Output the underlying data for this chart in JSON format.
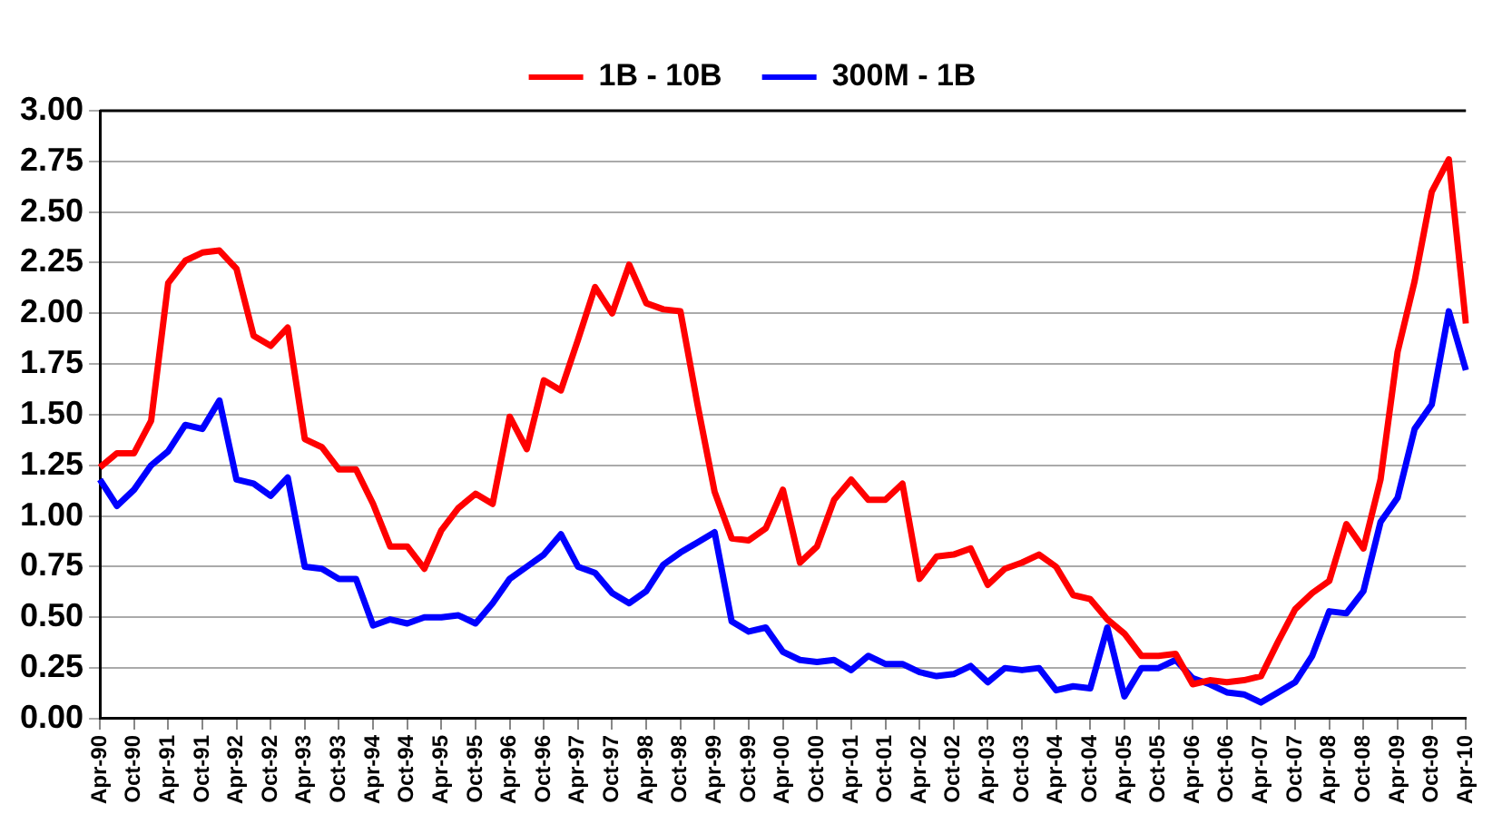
{
  "chart_data": {
    "type": "line",
    "categories": [
      "Apr-90",
      null,
      "Oct-90",
      null,
      "Apr-91",
      null,
      "Oct-91",
      null,
      "Apr-92",
      null,
      "Oct-92",
      null,
      "Apr-93",
      null,
      "Oct-93",
      null,
      "Apr-94",
      null,
      "Oct-94",
      null,
      "Apr-95",
      null,
      "Oct-95",
      null,
      "Apr-96",
      null,
      "Oct-96",
      null,
      "Apr-97",
      null,
      "Oct-97",
      null,
      "Apr-98",
      null,
      "Oct-98",
      null,
      "Apr-99",
      null,
      "Oct-99",
      null,
      "Apr-00",
      null,
      "Oct-00",
      null,
      "Apr-01",
      null,
      "Oct-01",
      null,
      "Apr-02",
      null,
      "Oct-02",
      null,
      "Apr-03",
      null,
      "Oct-03",
      null,
      "Apr-04",
      null,
      "Oct-04",
      null,
      "Apr-05",
      null,
      "Oct-05",
      null,
      "Apr-06",
      null,
      "Oct-06",
      null,
      "Apr-07",
      null,
      "Oct-07",
      null,
      "Apr-08",
      null,
      "Oct-08",
      null,
      "Apr-09",
      null,
      "Oct-09",
      null,
      "Apr-10"
    ],
    "series": [
      {
        "name": "1B - 10B",
        "color": "#ff0000",
        "values": [
          1.24,
          1.31,
          1.31,
          1.47,
          2.15,
          2.26,
          2.3,
          2.31,
          2.22,
          1.89,
          1.84,
          1.93,
          1.38,
          1.34,
          1.23,
          1.23,
          1.06,
          0.85,
          0.85,
          0.74,
          0.93,
          1.04,
          1.11,
          1.06,
          1.49,
          1.33,
          1.67,
          1.62,
          1.87,
          2.13,
          2.0,
          2.24,
          2.05,
          2.02,
          2.01,
          1.55,
          1.12,
          0.89,
          0.88,
          0.94,
          1.13,
          0.77,
          0.85,
          1.08,
          1.18,
          1.08,
          1.08,
          1.16,
          0.69,
          0.8,
          0.81,
          0.84,
          0.66,
          0.74,
          0.77,
          0.81,
          0.75,
          0.61,
          0.59,
          0.49,
          0.42,
          0.31,
          0.31,
          0.32,
          0.17,
          0.19,
          0.18,
          0.19,
          0.21,
          0.38,
          0.54,
          0.62,
          0.68,
          0.96,
          0.84,
          1.18,
          1.81,
          2.16,
          2.6,
          2.76,
          1.95
        ]
      },
      {
        "name": "300M - 1B",
        "color": "#0000ff",
        "values": [
          1.18,
          1.05,
          1.13,
          1.25,
          1.32,
          1.45,
          1.43,
          1.57,
          1.18,
          1.16,
          1.1,
          1.19,
          0.75,
          0.74,
          0.69,
          0.69,
          0.46,
          0.49,
          0.47,
          0.5,
          0.5,
          0.51,
          0.47,
          0.57,
          0.69,
          0.75,
          0.81,
          0.91,
          0.75,
          0.72,
          0.62,
          0.57,
          0.63,
          0.76,
          0.82,
          0.87,
          0.92,
          0.48,
          0.43,
          0.45,
          0.33,
          0.29,
          0.28,
          0.29,
          0.24,
          0.31,
          0.27,
          0.27,
          0.23,
          0.21,
          0.22,
          0.26,
          0.18,
          0.25,
          0.24,
          0.25,
          0.14,
          0.16,
          0.15,
          0.45,
          0.11,
          0.25,
          0.25,
          0.29,
          0.2,
          0.17,
          0.13,
          0.12,
          0.08,
          0.13,
          0.18,
          0.31,
          0.53,
          0.52,
          0.63,
          0.97,
          1.09,
          1.43,
          1.55,
          2.01,
          1.72
        ]
      }
    ],
    "ylim": [
      0,
      3
    ],
    "yticks": [
      {
        "value": 0,
        "label": "0.00"
      },
      {
        "value": 0.25,
        "label": "0.25"
      },
      {
        "value": 0.5,
        "label": "0.50"
      },
      {
        "value": 0.75,
        "label": "0.75"
      },
      {
        "value": 1,
        "label": "1.00"
      },
      {
        "value": 1.25,
        "label": "1.25"
      },
      {
        "value": 1.5,
        "label": "1.50"
      },
      {
        "value": 1.75,
        "label": "1.75"
      },
      {
        "value": 2,
        "label": "2.00"
      },
      {
        "value": 2.25,
        "label": "2.25"
      },
      {
        "value": 2.5,
        "label": "2.50"
      },
      {
        "value": 2.75,
        "label": "2.75"
      },
      {
        "value": 3,
        "label": "3.00"
      }
    ],
    "grid": "y",
    "legend": "top",
    "marker": "none",
    "line_style": "solid"
  }
}
